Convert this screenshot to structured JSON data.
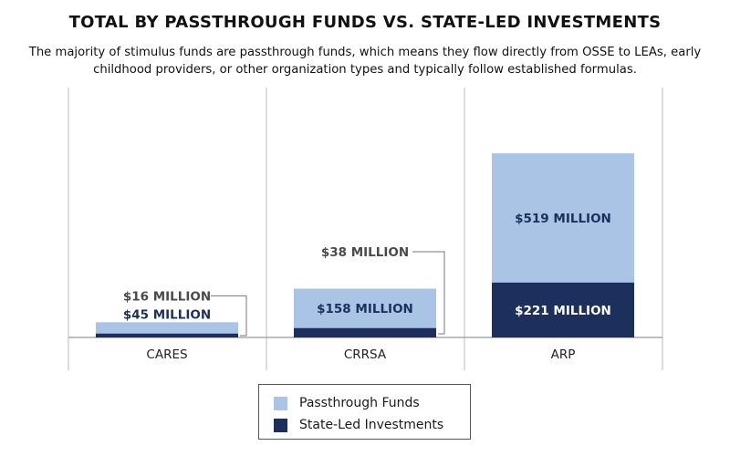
{
  "title": "TOTAL BY PASSTHROUGH FUNDS VS. STATE-LED INVESTMENTS",
  "subtitle": "The majority of stimulus funds are passthrough funds, which means they flow directly from OSSE to LEAs, early childhood providers, or other organization types and typically follow established formulas.",
  "colors": {
    "passthrough": "#a9c4e4",
    "state_led": "#1d2f5c",
    "label_dark": "#1d2f5c",
    "label_gray": "#4a4a4a",
    "label_on_dark": "#ffffff",
    "axis": "#999999"
  },
  "chart_data": {
    "type": "bar",
    "stacked": true,
    "categories": [
      "CARES",
      "CRRSA",
      "ARP"
    ],
    "series": [
      {
        "name": "State-Led Investments",
        "values": [
          16,
          38,
          221
        ],
        "unit": "million"
      },
      {
        "name": "Passthrough Funds",
        "values": [
          45,
          158,
          519
        ],
        "unit": "million"
      }
    ],
    "data_labels": {
      "state_led": [
        "$16 MILLION",
        "$38 MILLION",
        "$221 MILLION"
      ],
      "passthrough": [
        "$45 MILLION",
        "$158 MILLION",
        "$519 MILLION"
      ]
    },
    "xlabel": "",
    "ylabel": "",
    "ylim": [
      0,
      740
    ],
    "grid": false,
    "legend_position": "bottom-center"
  },
  "legend": {
    "items": [
      {
        "label": "Passthrough Funds",
        "color": "#a9c4e4"
      },
      {
        "label": "State-Led Investments",
        "color": "#1d2f5c"
      }
    ]
  }
}
